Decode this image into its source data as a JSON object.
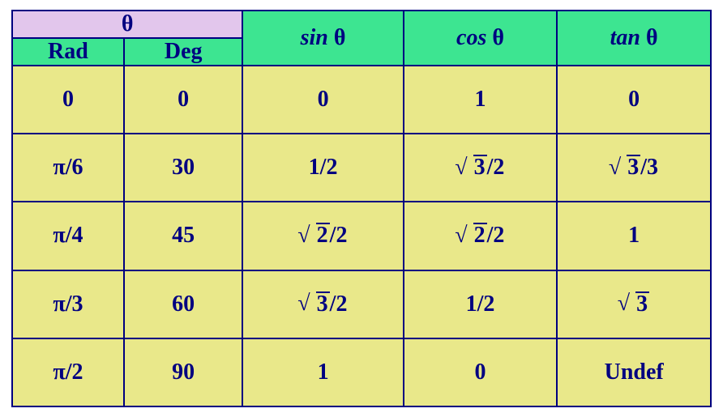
{
  "colors": {
    "border": "#000080",
    "text": "#000080",
    "theta_bg": "#e2c6ec",
    "header_bg": "#3de591",
    "data_bg": "#e9e88a",
    "page_bg": "#ffffff"
  },
  "typography": {
    "font_family": "Times New Roman",
    "cell_fontsize_pt": 21,
    "font_weight": "bold"
  },
  "table": {
    "type": "table",
    "columns": [
      "Rad",
      "Deg",
      "sin θ",
      "cos θ",
      "tan θ"
    ],
    "theta_label": "θ",
    "angle_headers": {
      "rad": "Rad",
      "deg": "Deg"
    },
    "fn_headers": {
      "sin": {
        "fn": "sin",
        "arg": "θ"
      },
      "cos": {
        "fn": "cos",
        "arg": "θ"
      },
      "tan": {
        "fn": "tan",
        "arg": "θ"
      }
    },
    "rows": [
      {
        "rad": {
          "text": "0"
        },
        "deg": "0",
        "sin": {
          "text": "0"
        },
        "cos": {
          "text": "1"
        },
        "tan": {
          "text": "0"
        }
      },
      {
        "rad": {
          "pi_frac": "6"
        },
        "deg": "30",
        "sin": {
          "text": "1/2"
        },
        "cos": {
          "sqrt": "3",
          "suffix": "/2"
        },
        "tan": {
          "sqrt": "3",
          "suffix": "/3"
        }
      },
      {
        "rad": {
          "pi_frac": "4"
        },
        "deg": "45",
        "sin": {
          "sqrt": "2",
          "suffix": "/2"
        },
        "cos": {
          "sqrt": "2",
          "suffix": "/2"
        },
        "tan": {
          "text": "1"
        }
      },
      {
        "rad": {
          "pi_frac": "3"
        },
        "deg": "60",
        "sin": {
          "sqrt": "3",
          "suffix": "/2"
        },
        "cos": {
          "text": "1/2"
        },
        "tan": {
          "sqrt": "3",
          "suffix": ""
        }
      },
      {
        "rad": {
          "pi_frac": "2"
        },
        "deg": "90",
        "sin": {
          "text": "1"
        },
        "cos": {
          "text": "0"
        },
        "tan": {
          "text": "Undef"
        }
      }
    ]
  }
}
